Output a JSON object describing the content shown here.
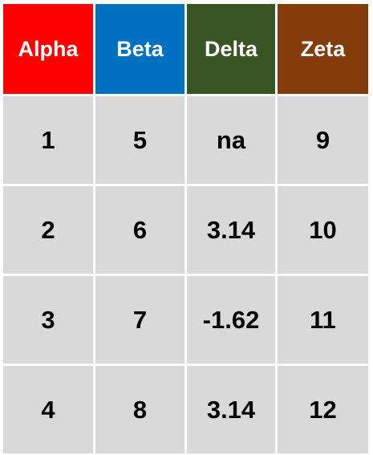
{
  "table": {
    "headers": [
      {
        "label": "Alpha",
        "color": "#ff0000"
      },
      {
        "label": "Beta",
        "color": "#0070c0"
      },
      {
        "label": "Delta",
        "color": "#375623"
      },
      {
        "label": "Zeta",
        "color": "#843c0c"
      }
    ],
    "rows": [
      [
        "1",
        "5",
        "na",
        "9"
      ],
      [
        "2",
        "6",
        "3.14",
        "10"
      ],
      [
        "3",
        "7",
        "-1.62",
        "11"
      ],
      [
        "4",
        "8",
        "3.14",
        "12"
      ]
    ],
    "cell_background": "#d9d9d9"
  }
}
